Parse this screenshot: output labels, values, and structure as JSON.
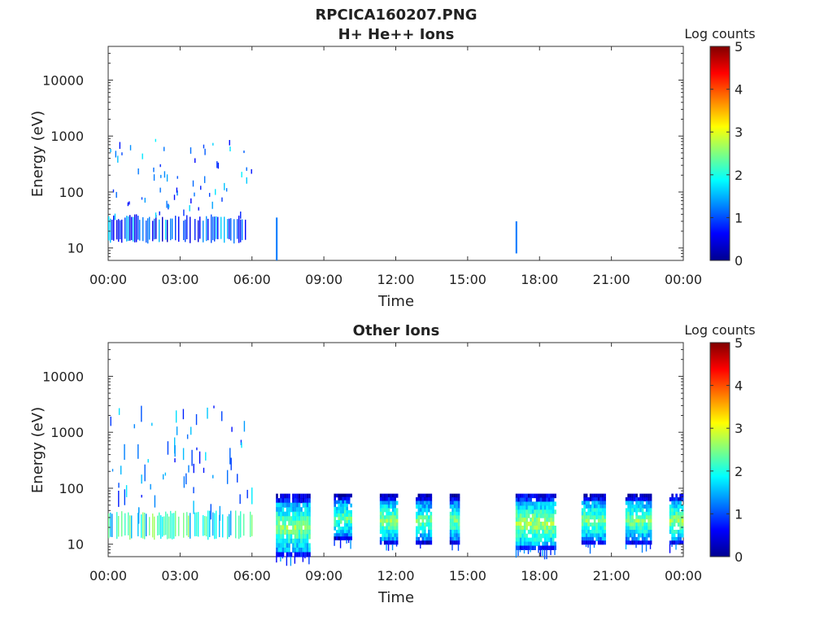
{
  "figure": {
    "title": "RPCICA160207.PNG"
  },
  "colorbar": {
    "label": "Log counts",
    "range": [
      0,
      5
    ],
    "ticks": [
      "0",
      "1",
      "2",
      "3",
      "4",
      "5"
    ],
    "colormap": "jet",
    "stops": [
      "#00008f",
      "#0000ff",
      "#0080ff",
      "#00ffff",
      "#80ff80",
      "#ffff00",
      "#ff8000",
      "#ff0000",
      "#800000"
    ]
  },
  "chart_data": [
    {
      "type": "heatmap",
      "title": "H+ He++ Ions",
      "xlabel": "Time",
      "ylabel": "Energy (eV)",
      "x_range_hours": [
        0,
        24
      ],
      "x_ticks": [
        "00:00",
        "03:00",
        "06:00",
        "09:00",
        "12:00",
        "15:00",
        "18:00",
        "21:00",
        "00:00"
      ],
      "y_scale": "log",
      "y_range": [
        6,
        40000
      ],
      "y_ticks": [
        "10",
        "100",
        "1000",
        "10000"
      ],
      "y_tick_values": [
        10,
        100,
        1000,
        10000
      ],
      "regions": [
        {
          "t_start": "00:00",
          "t_end": "06:00",
          "e_min": 12,
          "e_max": 40,
          "log_counts": 1.0,
          "pattern": "dense_columns"
        },
        {
          "t_start": "00:00",
          "t_end": "06:00",
          "e_min": 40,
          "e_max": 900,
          "log_counts": 1.0,
          "pattern": "sparse"
        },
        {
          "t_start": "07:00",
          "t_end": "07:05",
          "e_min": 6,
          "e_max": 35,
          "log_counts": 1.2,
          "pattern": "line"
        },
        {
          "t_start": "17:00",
          "t_end": "17:05",
          "e_min": 8,
          "e_max": 30,
          "log_counts": 1.2,
          "pattern": "line"
        }
      ]
    },
    {
      "type": "heatmap",
      "title": "Other Ions",
      "xlabel": "Time",
      "ylabel": "Energy (eV)",
      "x_range_hours": [
        0,
        24
      ],
      "x_ticks": [
        "00:00",
        "03:00",
        "06:00",
        "09:00",
        "12:00",
        "15:00",
        "18:00",
        "21:00",
        "00:00"
      ],
      "y_scale": "log",
      "y_range": [
        6,
        40000
      ],
      "y_ticks": [
        "10",
        "100",
        "1000",
        "10000"
      ],
      "y_tick_values": [
        10,
        100,
        1000,
        10000
      ],
      "regions": [
        {
          "t_start": "00:00",
          "t_end": "06:00",
          "e_min": 12,
          "e_max": 40,
          "log_counts": 2.0,
          "pattern": "dense_columns"
        },
        {
          "t_start": "00:00",
          "t_end": "06:00",
          "e_min": 40,
          "e_max": 3000,
          "log_counts": 1.0,
          "pattern": "sparse"
        },
        {
          "t_start": "07:00",
          "t_end": "08:25",
          "e_min": 6,
          "e_max": 80,
          "log_counts": 2.6,
          "pattern": "burst"
        },
        {
          "t_start": "09:25",
          "t_end": "10:10",
          "e_min": 12,
          "e_max": 80,
          "log_counts": 2.4,
          "pattern": "burst"
        },
        {
          "t_start": "11:20",
          "t_end": "12:05",
          "e_min": 10,
          "e_max": 80,
          "log_counts": 2.6,
          "pattern": "burst"
        },
        {
          "t_start": "12:50",
          "t_end": "13:30",
          "e_min": 10,
          "e_max": 80,
          "log_counts": 2.4,
          "pattern": "burst"
        },
        {
          "t_start": "14:15",
          "t_end": "14:40",
          "e_min": 10,
          "e_max": 80,
          "log_counts": 2.4,
          "pattern": "burst"
        },
        {
          "t_start": "17:00",
          "t_end": "18:40",
          "e_min": 8,
          "e_max": 80,
          "log_counts": 2.7,
          "pattern": "burst"
        },
        {
          "t_start": "19:45",
          "t_end": "20:45",
          "e_min": 10,
          "e_max": 80,
          "log_counts": 2.5,
          "pattern": "burst"
        },
        {
          "t_start": "21:35",
          "t_end": "22:40",
          "e_min": 10,
          "e_max": 80,
          "log_counts": 2.5,
          "pattern": "burst"
        },
        {
          "t_start": "23:25",
          "t_end": "24:00",
          "e_min": 10,
          "e_max": 80,
          "log_counts": 2.6,
          "pattern": "burst"
        }
      ]
    }
  ]
}
